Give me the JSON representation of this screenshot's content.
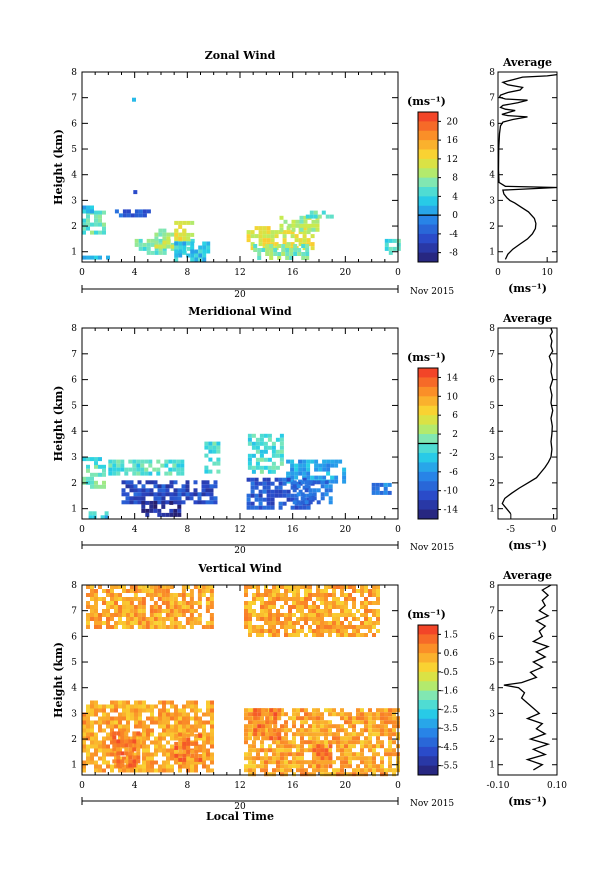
{
  "chart_data": [
    {
      "type": "heatmap",
      "title": "Zonal Wind",
      "ylabel": "Height (km)",
      "xlim": [
        0,
        24
      ],
      "ylim": [
        0.6,
        8
      ],
      "xticks": [
        "0",
        "4",
        "8",
        "12",
        "16",
        "20",
        "0"
      ],
      "yticks": [
        "1",
        "2",
        "3",
        "4",
        "5",
        "6",
        "7",
        "8"
      ],
      "date_axis": {
        "day": "20",
        "label": "Nov 2015"
      },
      "colorbar": {
        "unit": "(ms⁻¹)",
        "range": [
          -10,
          22
        ],
        "ticks": [
          "20",
          "16",
          "12",
          "8",
          "4",
          "0",
          "-4",
          "-8"
        ],
        "zero_line": 0
      },
      "regions": [
        {
          "x": [
            0.0,
            1.8
          ],
          "y": [
            1.8,
            2.6
          ],
          "value": 6
        },
        {
          "x": [
            0.0,
            0.9
          ],
          "y": [
            2.5,
            2.8
          ],
          "value": 2
        },
        {
          "x": [
            0.0,
            2.0
          ],
          "y": [
            0.7,
            0.85
          ],
          "value": 1
        },
        {
          "x": [
            2.5,
            5.0
          ],
          "y": [
            2.45,
            2.65
          ],
          "value": -4
        },
        {
          "x": [
            4.0,
            8.5
          ],
          "y": [
            1.0,
            1.5
          ],
          "value": 6
        },
        {
          "x": [
            5.5,
            7.8
          ],
          "y": [
            1.2,
            1.9
          ],
          "value": 9
        },
        {
          "x": [
            7.0,
            9.5
          ],
          "y": [
            0.7,
            1.4
          ],
          "value": 3
        },
        {
          "x": [
            7.0,
            8.3
          ],
          "y": [
            1.5,
            2.2
          ],
          "value": 11
        },
        {
          "x": [
            12.5,
            17.5
          ],
          "y": [
            1.2,
            2.0
          ],
          "value": 11
        },
        {
          "x": [
            13.0,
            17.0
          ],
          "y": [
            0.7,
            1.3
          ],
          "value": 7
        },
        {
          "x": [
            15.0,
            17.8
          ],
          "y": [
            1.9,
            2.4
          ],
          "value": 9
        },
        {
          "x": [
            17.0,
            19.0
          ],
          "y": [
            2.4,
            2.6
          ],
          "value": 6
        },
        {
          "x": [
            23.0,
            24.0
          ],
          "y": [
            1.0,
            1.5
          ],
          "value": 5
        },
        {
          "x": [
            3.8,
            4.0
          ],
          "y": [
            6.9,
            7.0
          ],
          "value": 3
        },
        {
          "x": [
            3.9,
            4.1
          ],
          "y": [
            3.3,
            3.4
          ],
          "value": -5
        }
      ]
    },
    {
      "type": "line",
      "title": "Average",
      "xlabel": "(ms⁻¹)",
      "xlim": [
        0,
        12
      ],
      "ylim": [
        0.6,
        8
      ],
      "xticks": [
        "0",
        "10"
      ],
      "yticks": [
        "1",
        "2",
        "3",
        "4",
        "5",
        "6",
        "7",
        "8"
      ],
      "x": [
        1.5,
        2.0,
        3.0,
        4.5,
        6.0,
        7.0,
        7.6,
        7.7,
        7.4,
        6.2,
        4.6,
        3.4,
        2.4,
        1.8,
        1.2,
        1.0,
        12.0,
        1.5,
        0.2,
        0.1,
        0.15,
        0.3,
        0.5,
        1.0,
        3.0,
        6.0,
        2.0,
        0.8,
        2.0,
        3.5,
        1.5,
        0.5,
        1.0,
        4.0,
        6.0,
        1.5,
        0.3,
        0.5,
        2.0,
        4.5,
        5.0,
        2.0,
        1.0,
        3.0,
        5.0,
        10.0,
        12.0
      ],
      "y": [
        0.7,
        0.9,
        1.1,
        1.3,
        1.5,
        1.7,
        1.9,
        2.1,
        2.3,
        2.55,
        2.75,
        2.9,
        3.0,
        3.1,
        3.25,
        3.4,
        3.5,
        3.55,
        3.7,
        4.2,
        5.0,
        5.6,
        5.9,
        6.05,
        6.15,
        6.25,
        6.3,
        6.35,
        6.42,
        6.5,
        6.55,
        6.62,
        6.7,
        6.8,
        6.9,
        6.95,
        7.02,
        7.1,
        7.2,
        7.3,
        7.4,
        7.5,
        7.6,
        7.7,
        7.8,
        7.85,
        7.9
      ]
    },
    {
      "type": "heatmap",
      "title": "Meridional Wind",
      "ylabel": "Height (km)",
      "xlim": [
        0,
        24
      ],
      "ylim": [
        0.6,
        8
      ],
      "xticks": [
        "0",
        "4",
        "8",
        "12",
        "16",
        "20",
        "0"
      ],
      "yticks": [
        "1",
        "2",
        "3",
        "4",
        "5",
        "6",
        "7",
        "8"
      ],
      "date_axis": {
        "day": "20",
        "label": "Nov 2015"
      },
      "colorbar": {
        "unit": "(ms⁻¹)",
        "range": [
          -16,
          16
        ],
        "ticks": [
          "14",
          "10",
          "6",
          "2",
          "-2",
          "-6",
          "-10",
          "-14"
        ],
        "zero_line": 0
      },
      "regions": [
        {
          "x": [
            0.0,
            1.8
          ],
          "y": [
            1.9,
            2.7
          ],
          "value": 0
        },
        {
          "x": [
            0.0,
            1.5
          ],
          "y": [
            2.7,
            3.0
          ],
          "value": -1
        },
        {
          "x": [
            2.0,
            7.5
          ],
          "y": [
            2.4,
            2.9
          ],
          "value": -1
        },
        {
          "x": [
            9.3,
            10.3
          ],
          "y": [
            2.5,
            3.6
          ],
          "value": -1
        },
        {
          "x": [
            12.6,
            15.3
          ],
          "y": [
            2.4,
            3.9
          ],
          "value": -1
        },
        {
          "x": [
            15.5,
            20.0
          ],
          "y": [
            2.0,
            2.9
          ],
          "value": -5
        },
        {
          "x": [
            3.0,
            10.0
          ],
          "y": [
            1.2,
            2.1
          ],
          "value": -11
        },
        {
          "x": [
            4.5,
            7.5
          ],
          "y": [
            0.7,
            1.3
          ],
          "value": -14
        },
        {
          "x": [
            12.5,
            17.5
          ],
          "y": [
            1.0,
            2.2
          ],
          "value": -10
        },
        {
          "x": [
            16.0,
            19.0
          ],
          "y": [
            1.3,
            2.1
          ],
          "value": -8
        },
        {
          "x": [
            22.0,
            23.5
          ],
          "y": [
            1.6,
            2.0
          ],
          "value": -7
        },
        {
          "x": [
            0.5,
            2.0
          ],
          "y": [
            0.7,
            0.9
          ],
          "value": -3
        }
      ]
    },
    {
      "type": "line",
      "title": "Average",
      "xlabel": "(ms⁻¹)",
      "xlim": [
        -6.5,
        0.4
      ],
      "ylim": [
        0.6,
        8
      ],
      "xticks": [
        "-5",
        "0"
      ],
      "yticks": [
        "1",
        "2",
        "3",
        "4",
        "5",
        "6",
        "7",
        "8"
      ],
      "x": [
        -5.0,
        -5.5,
        -6.0,
        -5.7,
        -4.9,
        -4.0,
        -3.0,
        -2.0,
        -1.5,
        -1.0,
        -0.6,
        -0.3,
        -0.2,
        -0.3,
        -0.2,
        -0.15,
        -0.3,
        -0.1,
        -0.3,
        -0.2,
        -0.4,
        -0.1,
        -0.3,
        -0.2,
        -0.5,
        -0.1,
        -0.3,
        -0.2,
        -0.4,
        -0.15,
        -0.3
      ],
      "y": [
        0.8,
        1.0,
        1.2,
        1.4,
        1.6,
        1.8,
        2.0,
        2.2,
        2.4,
        2.6,
        2.8,
        3.0,
        3.3,
        3.6,
        3.9,
        4.2,
        4.5,
        4.8,
        5.1,
        5.4,
        5.7,
        6.0,
        6.3,
        6.6,
        6.9,
        7.1,
        7.3,
        7.5,
        7.7,
        7.85,
        8.0
      ]
    },
    {
      "type": "heatmap",
      "title": "Vertical Wind",
      "xlabel": "Local Time",
      "ylabel": "Height (km)",
      "xlim": [
        0,
        24
      ],
      "ylim": [
        0.6,
        8
      ],
      "xticks": [
        "0",
        "4",
        "8",
        "12",
        "16",
        "20",
        "0"
      ],
      "yticks": [
        "1",
        "2",
        "3",
        "4",
        "5",
        "6",
        "7",
        "8"
      ],
      "date_axis": {
        "day": "20",
        "label": "Nov 2015"
      },
      "colorbar": {
        "unit": "(ms⁻¹)",
        "range": [
          -6,
          2
        ],
        "ticks": [
          "1.5",
          "0.6",
          "-0.5",
          "-1.6",
          "-2.5",
          "-3.5",
          "-4.5",
          "-5.5"
        ],
        "zero_line": null
      },
      "regions": [
        {
          "x": [
            0.0,
            10.0
          ],
          "y": [
            0.7,
            3.5
          ],
          "value": 0.4
        },
        {
          "x": [
            12.3,
            24.0
          ],
          "y": [
            0.7,
            3.2
          ],
          "value": 0.4
        },
        {
          "x": [
            0.3,
            10.0
          ],
          "y": [
            6.3,
            8.0
          ],
          "value": 0.4
        },
        {
          "x": [
            12.3,
            22.5
          ],
          "y": [
            6.0,
            8.0
          ],
          "value": 0.4
        },
        {
          "x": [
            2.3,
            4.2
          ],
          "y": [
            1.0,
            2.3
          ],
          "value": 1.0
        },
        {
          "x": [
            7.0,
            9.0
          ],
          "y": [
            1.2,
            2.2
          ],
          "value": 1.0
        },
        {
          "x": [
            13.0,
            15.0
          ],
          "y": [
            2.0,
            3.2
          ],
          "value": 1.0
        },
        {
          "x": [
            17.5,
            19.0
          ],
          "y": [
            1.0,
            1.8
          ],
          "value": 1.0
        }
      ]
    },
    {
      "type": "line",
      "title": "Average",
      "xlabel": "(ms⁻¹)",
      "xlim": [
        -0.1,
        0.1
      ],
      "ylim": [
        0.6,
        8
      ],
      "xticks": [
        "-0.10",
        "0.10"
      ],
      "yticks": [
        "1",
        "2",
        "3",
        "4",
        "5",
        "6",
        "7",
        "8"
      ],
      "x": [
        0.02,
        0.05,
        0.0,
        0.06,
        0.02,
        0.07,
        0.01,
        0.06,
        0.03,
        0.05,
        0.0,
        0.04,
        0.02,
        0.0,
        -0.02,
        -0.01,
        -0.03,
        -0.08,
        -0.02,
        0.03,
        0.01,
        0.05,
        0.02,
        0.06,
        0.03,
        0.07,
        0.02,
        0.05,
        0.04,
        0.06,
        0.03,
        0.07,
        0.04,
        0.06,
        0.05,
        0.07,
        0.05,
        0.08
      ],
      "y": [
        0.8,
        1.0,
        1.2,
        1.4,
        1.6,
        1.8,
        2.0,
        2.2,
        2.4,
        2.6,
        2.8,
        3.0,
        3.2,
        3.4,
        3.6,
        3.8,
        4.0,
        4.1,
        4.2,
        4.4,
        4.6,
        4.8,
        5.0,
        5.2,
        5.4,
        5.6,
        5.8,
        6.0,
        6.2,
        6.4,
        6.6,
        6.8,
        7.0,
        7.2,
        7.4,
        7.6,
        7.8,
        8.0
      ]
    }
  ]
}
